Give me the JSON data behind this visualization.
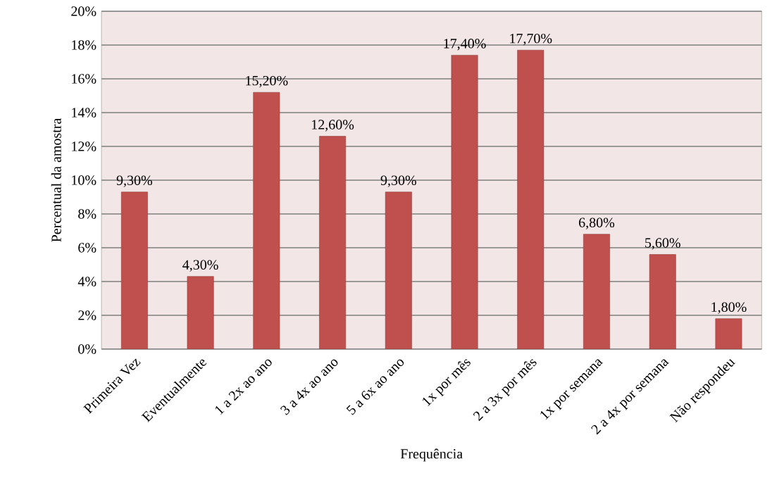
{
  "chart_data": {
    "type": "bar",
    "xlabel": "Frequência",
    "ylabel": "Percentual da amostra",
    "categories": [
      "Primeira Vez",
      "Eventualmente",
      "1 a 2x ao ano",
      "3 a 4x ao ano",
      "5 a 6x ao ano",
      "1x por mês",
      "2 a 3x por mês",
      "1x por semana",
      "2 a 4x por semana",
      "Não respondeu"
    ],
    "values": [
      9.3,
      4.3,
      15.2,
      12.6,
      9.3,
      17.4,
      17.7,
      6.8,
      5.6,
      1.8
    ],
    "value_labels": [
      "9,30%",
      "4,30%",
      "15,20%",
      "12,60%",
      "9,30%",
      "17,40%",
      "17,70%",
      "6,80%",
      "5,60%",
      "1,80%"
    ],
    "color": "#c0504d",
    "ylim": [
      0,
      20
    ],
    "yticks": [
      {
        "value": 0,
        "label": "0%"
      },
      {
        "value": 2,
        "label": "2%"
      },
      {
        "value": 4,
        "label": "4%"
      },
      {
        "value": 6,
        "label": "6%"
      },
      {
        "value": 8,
        "label": "8%"
      },
      {
        "value": 10,
        "label": "10%"
      },
      {
        "value": 12,
        "label": "12%"
      },
      {
        "value": 14,
        "label": "14%"
      },
      {
        "value": 16,
        "label": "16%"
      },
      {
        "value": 18,
        "label": "18%"
      },
      {
        "value": 20,
        "label": "20%"
      }
    ],
    "grid": "y"
  }
}
